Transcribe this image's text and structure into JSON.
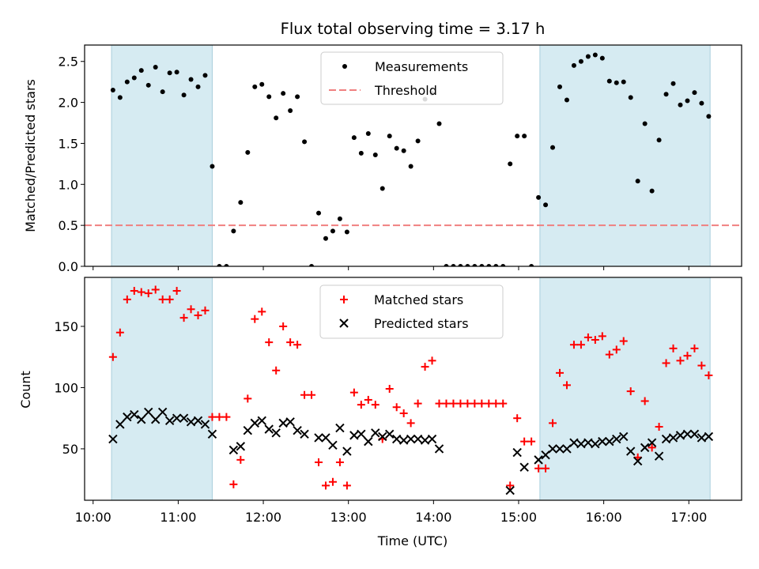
{
  "chart_data": [
    {
      "type": "scatter",
      "title": "Flux total observing time = 3.17 h",
      "xlabel": "",
      "ylabel": "Matched/Predicted stars",
      "ylim": [
        0,
        2.7
      ],
      "xlim_hours": [
        9.9,
        17.62
      ],
      "y_ticks": [
        0.0,
        0.5,
        1.0,
        1.5,
        2.0,
        2.5
      ],
      "y_tick_labels": [
        "0.0",
        "0.5",
        "1.0",
        "1.5",
        "2.0",
        "2.5"
      ],
      "shaded_intervals": [
        [
          "10:13",
          "11:24"
        ],
        [
          "15:15",
          "17:15"
        ]
      ],
      "threshold": {
        "name": "Threshold",
        "value": 0.5,
        "color": "#f08080"
      },
      "legend": {
        "placement": "upper center",
        "entries": [
          "Measurements",
          "Threshold"
        ]
      },
      "series": [
        {
          "name": "Measurements",
          "color": "#000000",
          "marker": "dot",
          "points": [
            [
              "10:14",
              2.15
            ],
            [
              "10:19",
              2.06
            ],
            [
              "10:24",
              2.25
            ],
            [
              "10:29",
              2.3
            ],
            [
              "10:34",
              2.39
            ],
            [
              "10:39",
              2.21
            ],
            [
              "10:44",
              2.43
            ],
            [
              "10:49",
              2.13
            ],
            [
              "10:54",
              2.36
            ],
            [
              "10:59",
              2.37
            ],
            [
              "11:04",
              2.09
            ],
            [
              "11:09",
              2.28
            ],
            [
              "11:14",
              2.19
            ],
            [
              "11:19",
              2.33
            ],
            [
              "11:24",
              1.22
            ],
            [
              "11:29",
              0.0
            ],
            [
              "11:34",
              0.0
            ],
            [
              "11:39",
              0.43
            ],
            [
              "11:44",
              0.78
            ],
            [
              "11:49",
              1.39
            ],
            [
              "11:54",
              2.19
            ],
            [
              "11:59",
              2.22
            ],
            [
              "12:04",
              2.07
            ],
            [
              "12:09",
              1.81
            ],
            [
              "12:14",
              2.11
            ],
            [
              "12:19",
              1.9
            ],
            [
              "12:24",
              2.07
            ],
            [
              "12:29",
              1.52
            ],
            [
              "12:34",
              0.0
            ],
            [
              "12:39",
              0.65
            ],
            [
              "12:44",
              0.34
            ],
            [
              "12:49",
              0.43
            ],
            [
              "12:54",
              0.58
            ],
            [
              "12:59",
              0.42
            ],
            [
              "13:04",
              1.57
            ],
            [
              "13:09",
              1.38
            ],
            [
              "13:14",
              1.62
            ],
            [
              "13:19",
              1.36
            ],
            [
              "13:24",
              0.95
            ],
            [
              "13:29",
              1.59
            ],
            [
              "13:34",
              1.44
            ],
            [
              "13:39",
              1.41
            ],
            [
              "13:44",
              1.22
            ],
            [
              "13:49",
              1.53
            ],
            [
              "13:54",
              2.04
            ],
            [
              "13:59",
              2.11
            ],
            [
              "14:04",
              1.74
            ],
            [
              "14:09",
              0.0
            ],
            [
              "14:14",
              0.0
            ],
            [
              "14:19",
              0.0
            ],
            [
              "14:24",
              0.0
            ],
            [
              "14:29",
              0.0
            ],
            [
              "14:34",
              0.0
            ],
            [
              "14:39",
              0.0
            ],
            [
              "14:44",
              0.0
            ],
            [
              "14:49",
              0.0
            ],
            [
              "14:54",
              1.25
            ],
            [
              "14:59",
              1.59
            ],
            [
              "15:04",
              1.59
            ],
            [
              "15:09",
              0.0
            ],
            [
              "15:14",
              0.84
            ],
            [
              "15:19",
              0.75
            ],
            [
              "15:24",
              1.45
            ],
            [
              "15:29",
              2.19
            ],
            [
              "15:34",
              2.03
            ],
            [
              "15:39",
              2.45
            ],
            [
              "15:44",
              2.5
            ],
            [
              "15:49",
              2.56
            ],
            [
              "15:54",
              2.58
            ],
            [
              "15:59",
              2.54
            ],
            [
              "16:04",
              2.26
            ],
            [
              "16:09",
              2.24
            ],
            [
              "16:14",
              2.25
            ],
            [
              "16:19",
              2.06
            ],
            [
              "16:24",
              1.04
            ],
            [
              "16:29",
              1.74
            ],
            [
              "16:34",
              0.92
            ],
            [
              "16:39",
              1.54
            ],
            [
              "16:44",
              2.1
            ],
            [
              "16:49",
              2.23
            ],
            [
              "16:54",
              1.97
            ],
            [
              "16:59",
              2.02
            ],
            [
              "17:04",
              2.12
            ],
            [
              "17:09",
              1.99
            ],
            [
              "17:14",
              1.83
            ]
          ]
        }
      ]
    },
    {
      "type": "scatter",
      "title": "",
      "xlabel": "Time (UTC)",
      "ylabel": "Count",
      "ylim": [
        8,
        190
      ],
      "xlim_hours": [
        9.9,
        17.62
      ],
      "y_ticks": [
        50,
        100,
        150
      ],
      "y_tick_labels": [
        "50",
        "100",
        "150"
      ],
      "x_ticks": [
        "10:00",
        "11:00",
        "12:00",
        "13:00",
        "14:00",
        "15:00",
        "16:00",
        "17:00"
      ],
      "shaded_intervals": [
        [
          "10:13",
          "11:24"
        ],
        [
          "15:15",
          "17:15"
        ]
      ],
      "legend": {
        "placement": "upper center",
        "entries": [
          "Matched stars",
          "Predicted stars"
        ]
      },
      "series": [
        {
          "name": "Matched stars",
          "color": "#ff0000",
          "marker": "plus",
          "points": [
            [
              "10:14",
              125
            ],
            [
              "10:19",
              145
            ],
            [
              "10:24",
              172
            ],
            [
              "10:29",
              179
            ],
            [
              "10:34",
              178
            ],
            [
              "10:39",
              177
            ],
            [
              "10:44",
              180
            ],
            [
              "10:49",
              172
            ],
            [
              "10:54",
              172
            ],
            [
              "10:59",
              179
            ],
            [
              "11:04",
              157
            ],
            [
              "11:09",
              164
            ],
            [
              "11:14",
              159
            ],
            [
              "11:19",
              163
            ],
            [
              "11:24",
              76
            ],
            [
              "11:29",
              76
            ],
            [
              "11:34",
              76
            ],
            [
              "11:39",
              21
            ],
            [
              "11:44",
              41
            ],
            [
              "11:49",
              91
            ],
            [
              "11:54",
              156
            ],
            [
              "11:59",
              162
            ],
            [
              "12:04",
              137
            ],
            [
              "12:09",
              114
            ],
            [
              "12:14",
              150
            ],
            [
              "12:19",
              137
            ],
            [
              "12:24",
              135
            ],
            [
              "12:29",
              94
            ],
            [
              "12:34",
              94
            ],
            [
              "12:39",
              39
            ],
            [
              "12:44",
              20
            ],
            [
              "12:49",
              23
            ],
            [
              "12:54",
              39
            ],
            [
              "12:59",
              20
            ],
            [
              "13:04",
              96
            ],
            [
              "13:09",
              86
            ],
            [
              "13:14",
              90
            ],
            [
              "13:19",
              86
            ],
            [
              "13:24",
              58
            ],
            [
              "13:29",
              99
            ],
            [
              "13:34",
              84
            ],
            [
              "13:39",
              79
            ],
            [
              "13:44",
              71
            ],
            [
              "13:49",
              87
            ],
            [
              "13:54",
              117
            ],
            [
              "13:59",
              122
            ],
            [
              "14:04",
              87
            ],
            [
              "14:09",
              87
            ],
            [
              "14:14",
              87
            ],
            [
              "14:19",
              87
            ],
            [
              "14:24",
              87
            ],
            [
              "14:29",
              87
            ],
            [
              "14:34",
              87
            ],
            [
              "14:39",
              87
            ],
            [
              "14:44",
              87
            ],
            [
              "14:49",
              87
            ],
            [
              "14:54",
              20
            ],
            [
              "14:59",
              75
            ],
            [
              "15:04",
              56
            ],
            [
              "15:09",
              56
            ],
            [
              "15:14",
              34
            ],
            [
              "15:19",
              34
            ],
            [
              "15:24",
              71
            ],
            [
              "15:29",
              112
            ],
            [
              "15:34",
              102
            ],
            [
              "15:39",
              135
            ],
            [
              "15:44",
              135
            ],
            [
              "15:49",
              141
            ],
            [
              "15:54",
              139
            ],
            [
              "15:59",
              142
            ],
            [
              "16:04",
              127
            ],
            [
              "16:09",
              131
            ],
            [
              "16:14",
              138
            ],
            [
              "16:19",
              97
            ],
            [
              "16:24",
              43
            ],
            [
              "16:29",
              89
            ],
            [
              "16:34",
              51
            ],
            [
              "16:39",
              68
            ],
            [
              "16:44",
              120
            ],
            [
              "16:49",
              132
            ],
            [
              "16:54",
              122
            ],
            [
              "16:59",
              126
            ],
            [
              "17:04",
              132
            ],
            [
              "17:09",
              118
            ],
            [
              "17:14",
              110
            ]
          ]
        },
        {
          "name": "Predicted stars",
          "color": "#000000",
          "marker": "x",
          "points": [
            [
              "10:14",
              58
            ],
            [
              "10:19",
              70
            ],
            [
              "10:24",
              76
            ],
            [
              "10:29",
              78
            ],
            [
              "10:34",
              74
            ],
            [
              "10:39",
              80
            ],
            [
              "10:44",
              74
            ],
            [
              "10:49",
              80
            ],
            [
              "10:54",
              73
            ],
            [
              "10:59",
              75
            ],
            [
              "11:04",
              75
            ],
            [
              "11:09",
              72
            ],
            [
              "11:14",
              73
            ],
            [
              "11:19",
              70
            ],
            [
              "11:24",
              62
            ],
            [
              "11:39",
              49
            ],
            [
              "11:44",
              52
            ],
            [
              "11:49",
              65
            ],
            [
              "11:54",
              71
            ],
            [
              "11:59",
              73
            ],
            [
              "12:04",
              66
            ],
            [
              "12:09",
              63
            ],
            [
              "12:14",
              71
            ],
            [
              "12:19",
              72
            ],
            [
              "12:24",
              65
            ],
            [
              "12:29",
              62
            ],
            [
              "12:39",
              59
            ],
            [
              "12:44",
              59
            ],
            [
              "12:49",
              53
            ],
            [
              "12:54",
              67
            ],
            [
              "12:59",
              48
            ],
            [
              "13:04",
              61
            ],
            [
              "13:09",
              62
            ],
            [
              "13:14",
              56
            ],
            [
              "13:19",
              63
            ],
            [
              "13:24",
              60
            ],
            [
              "13:29",
              62
            ],
            [
              "13:34",
              58
            ],
            [
              "13:39",
              57
            ],
            [
              "13:44",
              58
            ],
            [
              "13:49",
              58
            ],
            [
              "13:54",
              57
            ],
            [
              "13:59",
              58
            ],
            [
              "14:04",
              50
            ],
            [
              "14:54",
              16
            ],
            [
              "14:59",
              47
            ],
            [
              "15:04",
              35
            ],
            [
              "15:14",
              41
            ],
            [
              "15:19",
              45
            ],
            [
              "15:24",
              50
            ],
            [
              "15:29",
              50
            ],
            [
              "15:34",
              50
            ],
            [
              "15:39",
              55
            ],
            [
              "15:44",
              54
            ],
            [
              "15:49",
              55
            ],
            [
              "15:54",
              54
            ],
            [
              "15:59",
              56
            ],
            [
              "16:04",
              56
            ],
            [
              "16:09",
              58
            ],
            [
              "16:14",
              60
            ],
            [
              "16:19",
              48
            ],
            [
              "16:24",
              40
            ],
            [
              "16:29",
              51
            ],
            [
              "16:34",
              55
            ],
            [
              "16:39",
              44
            ],
            [
              "16:44",
              58
            ],
            [
              "16:49",
              59
            ],
            [
              "16:54",
              61
            ],
            [
              "16:59",
              62
            ],
            [
              "17:04",
              62
            ],
            [
              "17:09",
              59
            ],
            [
              "17:14",
              60
            ]
          ]
        }
      ]
    }
  ]
}
